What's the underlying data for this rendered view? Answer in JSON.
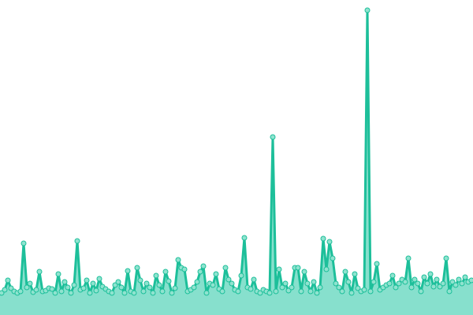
{
  "chart_data": {
    "type": "area",
    "title": "",
    "xlabel": "",
    "ylabel": "",
    "ylim": [
      0,
      400
    ],
    "grid": false,
    "legend": "none",
    "colors": {
      "line": "#1dbf9a",
      "fill": "#87e0cd",
      "marker_fill": "#8fe3cf",
      "marker_stroke": "#1dbf9a"
    },
    "series": [
      {
        "values": [
          28,
          32,
          44,
          34,
          30,
          28,
          30,
          91,
          35,
          40,
          29,
          32,
          55,
          30,
          31,
          34,
          33,
          28,
          52,
          30,
          42,
          35,
          28,
          38,
          94,
          32,
          34,
          44,
          28,
          40,
          31,
          46,
          36,
          33,
          30,
          28,
          38,
          42,
          35,
          28,
          56,
          30,
          28,
          60,
          44,
          30,
          40,
          35,
          28,
          50,
          38,
          30,
          55,
          43,
          28,
          34,
          70,
          60,
          58,
          30,
          32,
          35,
          42,
          55,
          62,
          28,
          40,
          38,
          52,
          33,
          30,
          60,
          45,
          40,
          32,
          30,
          50,
          98,
          35,
          33,
          45,
          30,
          28,
          32,
          30,
          28,
          226,
          30,
          58,
          35,
          40,
          31,
          35,
          60,
          60,
          30,
          55,
          40,
          30,
          42,
          28,
          35,
          97,
          58,
          93,
          72,
          40,
          35,
          30,
          55,
          42,
          28,
          52,
          34,
          30,
          32,
          387,
          30,
          42,
          65,
          32,
          35,
          38,
          40,
          50,
          35,
          40,
          45,
          42,
          72,
          35,
          45,
          40,
          30,
          48,
          40,
          52,
          36,
          45,
          36,
          40,
          72,
          30,
          42,
          38,
          45,
          40,
          48,
          42,
          44
        ]
      }
    ]
  }
}
